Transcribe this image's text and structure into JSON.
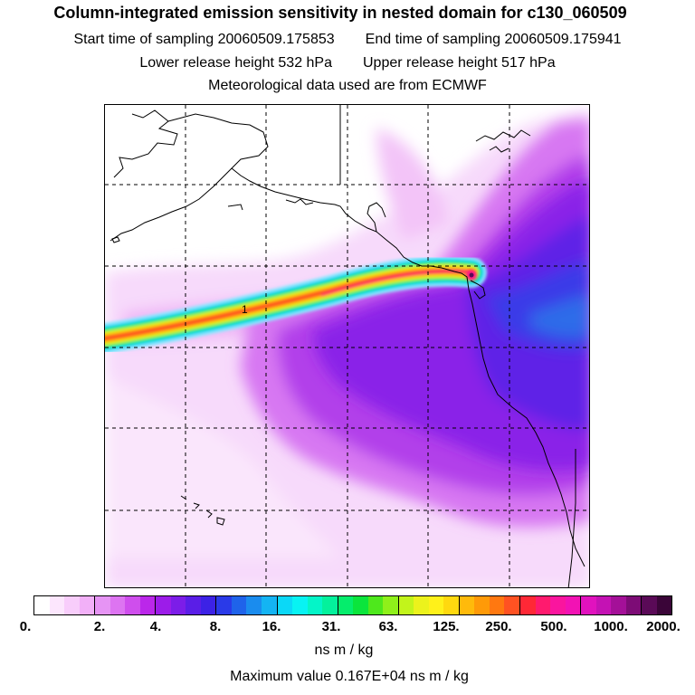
{
  "header": {
    "title": "Column-integrated emission sensitivity in nested domain for c130_060509",
    "start_label": "Start time of sampling 20060509.175853",
    "end_label": "End time of sampling 20060509.175941",
    "lower_label": "Lower release height  532 hPa",
    "upper_label": "Upper release height  517 hPa",
    "met_label": "Meteorological data used are from ECMWF"
  },
  "map": {
    "region": "North-East Pacific and western North America",
    "marker_label": "1",
    "grid": "dashed lat/lon lines"
  },
  "colorbar": {
    "tick_labels": [
      "0.",
      "2.",
      "4.",
      "8.",
      "16.",
      "31.",
      "63.",
      "125.",
      "250.",
      "500.",
      "1000.",
      "2000."
    ],
    "colors": [
      "#ffffff",
      "#fce6fd",
      "#f8cdfb",
      "#f2b0f8",
      "#e694f4",
      "#dd74f1",
      "#cf4eed",
      "#bb27ea",
      "#9c1ce9",
      "#7c1de8",
      "#5a1ee7",
      "#3c22e6",
      "#2a3ae8",
      "#1f63ea",
      "#1a8cee",
      "#14b4f3",
      "#0bd8f7",
      "#08f3f3",
      "#04f5c8",
      "#04f19c",
      "#05ed6c",
      "#0be53c",
      "#4ee81c",
      "#8ff01a",
      "#c2f41b",
      "#ecf21c",
      "#fff11a",
      "#ffd90f",
      "#ffba0b",
      "#ff9a08",
      "#ff7810",
      "#ff5222",
      "#ff2836",
      "#ff1a6e",
      "#fa159e",
      "#f212b4",
      "#e112be",
      "#c412b4",
      "#a41098",
      "#7d0c76",
      "#5a0a57",
      "#3a0538"
    ],
    "units": "ns m / kg"
  },
  "footer": {
    "max_label": "Maximum value  0.167E+04 ns m / kg"
  }
}
